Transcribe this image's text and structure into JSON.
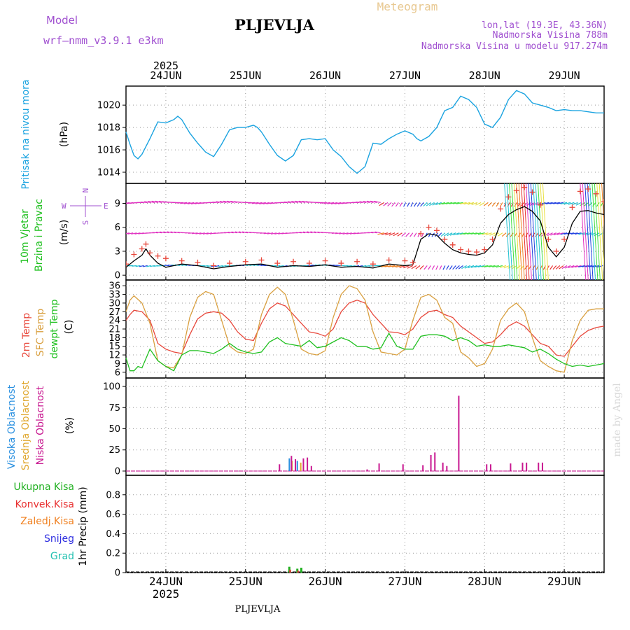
{
  "header": {
    "model_label": "Model",
    "model_name": "wrf–nmm_v3.9.1 e3km",
    "station": "PLJEVLJA",
    "meteogram": "Meteogram",
    "lonlat": "lon,lat (19.3E, 43.36N)",
    "elevation": "Nadmorska Visina 788m",
    "model_elevation": "Nadmorska Visina u modelu 917.274m",
    "year": "2025",
    "footer_station": "PLJEVLJA",
    "watermark": "made by Angel"
  },
  "colors": {
    "pressure": "#1aa3e0",
    "wind_speed": "#000000",
    "wind_gust": "#e8483c",
    "t2m": "#e8483c",
    "sfc": "#d9a040",
    "dew": "#20c020",
    "cloud_high": "#2a90e0",
    "cloud_mid": "#e0a830",
    "cloud_low": "#c81890",
    "precip_total": "#20b020",
    "precip_conv": "#e83030",
    "precip_frz": "#f08020",
    "snow": "#3030e0",
    "grad": "#20c0b0",
    "model_text": "#a050d0",
    "meteogram_text": "#e8c890"
  },
  "chart_data": {
    "type": "line",
    "x_axis": {
      "days": [
        "24JUN",
        "25JUN",
        "26JUN",
        "27JUN",
        "28JUN",
        "29JUN"
      ],
      "year_label": "2025",
      "range_days": [
        -0.5,
        5.5
      ]
    },
    "panels": [
      {
        "id": "pressure",
        "title": "Pritisak na nivou mora",
        "unit": "(hPa)",
        "yticks": [
          1014,
          1016,
          1018,
          1020
        ],
        "ylim": [
          1013,
          1021.7
        ],
        "series": [
          {
            "name": "Pritisak na nivou mora",
            "x": [
              -0.5,
              -0.45,
              -0.4,
              -0.35,
              -0.3,
              -0.2,
              -0.1,
              0.0,
              0.1,
              0.15,
              0.2,
              0.3,
              0.4,
              0.5,
              0.6,
              0.7,
              0.8,
              0.9,
              1.0,
              1.1,
              1.15,
              1.2,
              1.3,
              1.4,
              1.5,
              1.6,
              1.7,
              1.8,
              1.9,
              2.0,
              2.1,
              2.2,
              2.3,
              2.4,
              2.5,
              2.6,
              2.7,
              2.8,
              2.9,
              3.0,
              3.1,
              3.15,
              3.2,
              3.3,
              3.4,
              3.5,
              3.6,
              3.7,
              3.8,
              3.9,
              4.0,
              4.1,
              4.2,
              4.3,
              4.4,
              4.5,
              4.6,
              4.7,
              4.8,
              4.9,
              5.0,
              5.1,
              5.2,
              5.3,
              5.4,
              5.5
            ],
            "y": [
              1017.6,
              1016.5,
              1015.5,
              1015.2,
              1015.6,
              1017.0,
              1018.5,
              1018.4,
              1018.7,
              1019.0,
              1018.7,
              1017.5,
              1016.6,
              1015.8,
              1015.4,
              1016.5,
              1017.8,
              1018.0,
              1018.0,
              1018.2,
              1018.0,
              1017.6,
              1016.5,
              1015.5,
              1015.0,
              1015.5,
              1016.9,
              1017.0,
              1016.9,
              1017.0,
              1016.0,
              1015.4,
              1014.5,
              1013.9,
              1014.5,
              1016.6,
              1016.5,
              1017.0,
              1017.4,
              1017.7,
              1017.4,
              1017.0,
              1016.8,
              1017.2,
              1018.0,
              1019.5,
              1019.8,
              1020.8,
              1020.5,
              1019.8,
              1018.3,
              1018.0,
              1018.9,
              1020.5,
              1021.3,
              1021.0,
              1020.2,
              1020.0,
              1019.8,
              1019.5,
              1019.6,
              1019.5,
              1019.5,
              1019.4,
              1019.3,
              1019.3
            ],
            "color": "#1aa3e0"
          }
        ]
      },
      {
        "id": "wind",
        "title_1": "10m Vjetar",
        "title_2": "Brzina i Pravac",
        "unit": "(m/s)",
        "compass": {
          "n": "N",
          "s": "S",
          "e": "E",
          "w": "W"
        },
        "yticks": [
          0,
          3,
          6,
          9
        ],
        "ylim": [
          -0.6,
          11.5
        ],
        "series": [
          {
            "name": "Brzina",
            "style": "line",
            "x": [
              -0.5,
              -0.4,
              -0.3,
              -0.25,
              -0.2,
              -0.1,
              0.0,
              0.2,
              0.4,
              0.6,
              0.8,
              1.0,
              1.2,
              1.4,
              1.6,
              1.8,
              2.0,
              2.2,
              2.4,
              2.6,
              2.8,
              3.0,
              3.1,
              3.2,
              3.3,
              3.4,
              3.5,
              3.6,
              3.7,
              3.8,
              3.9,
              4.0,
              4.1,
              4.2,
              4.3,
              4.4,
              4.5,
              4.6,
              4.7,
              4.8,
              4.9,
              5.0,
              5.1,
              5.2,
              5.3,
              5.4,
              5.5
            ],
            "y": [
              1.0,
              1.8,
              2.5,
              3.3,
              2.5,
              1.5,
              1.0,
              1.4,
              1.2,
              0.8,
              1.1,
              1.3,
              1.4,
              1.0,
              1.2,
              1.1,
              1.3,
              1.0,
              1.1,
              0.9,
              1.4,
              1.2,
              1.3,
              4.5,
              5.2,
              5.0,
              4.0,
              3.2,
              2.8,
              2.6,
              2.5,
              2.8,
              3.8,
              6.5,
              7.6,
              8.2,
              8.6,
              8.0,
              6.8,
              3.5,
              2.3,
              3.5,
              6.5,
              8.0,
              8.1,
              7.8,
              7.6
            ],
            "color": "#000000"
          },
          {
            "name": "Udar",
            "style": "plus",
            "x": [
              -0.5,
              -0.4,
              -0.3,
              -0.25,
              -0.2,
              -0.1,
              0.0,
              0.2,
              0.4,
              0.6,
              0.8,
              1.0,
              1.2,
              1.4,
              1.6,
              1.8,
              2.0,
              2.2,
              2.4,
              2.6,
              2.8,
              3.0,
              3.1,
              3.2,
              3.3,
              3.4,
              3.5,
              3.6,
              3.7,
              3.8,
              3.9,
              4.0,
              4.1,
              4.2,
              4.3,
              4.4,
              4.5,
              4.6,
              4.7,
              4.8,
              4.9,
              5.0,
              5.1,
              5.2,
              5.3,
              5.4,
              5.5
            ],
            "y": [
              1.4,
              2.6,
              3.3,
              3.9,
              2.8,
              2.4,
              2.1,
              1.8,
              1.6,
              1.2,
              1.5,
              1.7,
              1.9,
              1.5,
              1.7,
              1.5,
              1.8,
              1.5,
              1.7,
              1.4,
              1.9,
              1.8,
              1.6,
              5.2,
              6.0,
              5.6,
              4.5,
              3.8,
              3.2,
              3.0,
              2.9,
              3.2,
              4.5,
              8.3,
              9.8,
              10.6,
              11.0,
              10.4,
              8.8,
              4.5,
              3.0,
              4.5,
              8.5,
              10.5,
              10.8,
              10.2,
              9.2
            ],
            "color": "#e8483c"
          },
          {
            "name": "Pravac",
            "style": "barbs",
            "rows": [
              1.2,
              5.3,
              9.1
            ],
            "color_range": [
              "#2040e0",
              "#20c0d0",
              "#40e040",
              "#e8e040",
              "#f08020",
              "#e83030",
              "#e030c0"
            ]
          }
        ]
      },
      {
        "id": "temperature",
        "title_1": "2m Temp",
        "title_2": "SFC Temp",
        "title_3": "dewpt Temp",
        "unit": "(C)",
        "yticks": [
          6,
          9,
          12,
          15,
          18,
          21,
          24,
          27,
          30,
          33,
          36
        ],
        "ylim": [
          4,
          38
        ],
        "series": [
          {
            "name": "2m Temp",
            "x": [
              -0.5,
              -0.45,
              -0.4,
              -0.3,
              -0.2,
              -0.1,
              0.0,
              0.1,
              0.2,
              0.3,
              0.4,
              0.5,
              0.6,
              0.7,
              0.8,
              0.9,
              1.0,
              1.1,
              1.2,
              1.3,
              1.4,
              1.5,
              1.6,
              1.7,
              1.8,
              1.9,
              2.0,
              2.1,
              2.2,
              2.3,
              2.4,
              2.5,
              2.6,
              2.7,
              2.8,
              2.9,
              3.0,
              3.1,
              3.2,
              3.3,
              3.4,
              3.5,
              3.6,
              3.7,
              3.8,
              3.9,
              4.0,
              4.1,
              4.2,
              4.3,
              4.4,
              4.5,
              4.6,
              4.7,
              4.8,
              4.9,
              5.0,
              5.1,
              5.2,
              5.3,
              5.4,
              5.5
            ],
            "y": [
              24,
              26,
              27.5,
              27,
              24,
              16,
              14,
              13,
              12.5,
              19,
              24.5,
              26.5,
              27,
              26.5,
              24,
              20,
              17.5,
              17,
              23,
              28,
              30,
              29,
              26,
              23,
              20,
              19.5,
              18.5,
              21,
              27,
              30,
              31,
              30,
              26,
              23,
              20,
              19.8,
              19,
              21,
              25,
              27,
              27.5,
              26,
              25,
              22,
              20,
              18,
              16,
              16.5,
              19,
              22,
              23.5,
              22,
              19,
              16,
              15,
              12,
              11.5,
              15,
              18.5,
              20.5,
              21.5,
              22
            ],
            "color": "#e8483c"
          },
          {
            "name": "SFC Temp",
            "x": [
              -0.5,
              -0.45,
              -0.4,
              -0.3,
              -0.2,
              -0.1,
              0.0,
              0.1,
              0.2,
              0.3,
              0.4,
              0.5,
              0.6,
              0.7,
              0.8,
              0.9,
              1.0,
              1.1,
              1.2,
              1.3,
              1.4,
              1.5,
              1.6,
              1.7,
              1.8,
              1.9,
              2.0,
              2.1,
              2.2,
              2.3,
              2.4,
              2.5,
              2.6,
              2.7,
              2.8,
              2.9,
              3.0,
              3.1,
              3.2,
              3.3,
              3.4,
              3.5,
              3.6,
              3.7,
              3.8,
              3.9,
              4.0,
              4.1,
              4.2,
              4.3,
              4.4,
              4.5,
              4.6,
              4.7,
              4.8,
              4.9,
              5.0,
              5.1,
              5.2,
              5.3,
              5.4,
              5.5
            ],
            "y": [
              27,
              31,
              32.5,
              30,
              23,
              10,
              8,
              7.5,
              12,
              25,
              32,
              34,
              33,
              24,
              15,
              13,
              12.5,
              14,
              26,
              33,
              35.5,
              33,
              24,
              14,
              12.5,
              12,
              13.5,
              25,
              33,
              36,
              35,
              31,
              20,
              13,
              12.5,
              12,
              14,
              24,
              32,
              33,
              31,
              25,
              23,
              13,
              11,
              8,
              9,
              14,
              24,
              28,
              30,
              27,
              18,
              10,
              8,
              6.5,
              6,
              17,
              24,
              27.5,
              28,
              28
            ],
            "color": "#d9a040"
          },
          {
            "name": "dewpt Temp",
            "x": [
              -0.5,
              -0.45,
              -0.4,
              -0.35,
              -0.3,
              -0.2,
              -0.1,
              0.0,
              0.1,
              0.2,
              0.3,
              0.4,
              0.5,
              0.6,
              0.7,
              0.8,
              0.9,
              1.0,
              1.1,
              1.2,
              1.3,
              1.4,
              1.5,
              1.6,
              1.7,
              1.8,
              1.9,
              2.0,
              2.1,
              2.2,
              2.3,
              2.4,
              2.5,
              2.6,
              2.7,
              2.8,
              2.9,
              3.0,
              3.1,
              3.2,
              3.3,
              3.4,
              3.5,
              3.6,
              3.7,
              3.8,
              3.9,
              4.0,
              4.1,
              4.2,
              4.3,
              4.4,
              4.5,
              4.6,
              4.7,
              4.8,
              4.9,
              5.0,
              5.1,
              5.2,
              5.3,
              5.4,
              5.5
            ],
            "y": [
              11,
              6.5,
              6.5,
              8,
              7.5,
              14,
              10,
              8,
              6.5,
              12,
              13.5,
              13.5,
              13,
              12.5,
              14,
              16,
              14,
              13,
              12.5,
              13,
              16.5,
              18,
              16,
              15.5,
              15,
              17,
              14.5,
              15,
              16.5,
              18,
              17,
              15,
              15,
              14,
              14.5,
              19.5,
              15,
              14,
              14,
              18.5,
              19,
              19,
              18.5,
              17,
              18,
              17,
              15,
              15.5,
              15,
              15,
              15.5,
              15,
              14.5,
              13,
              14,
              12.5,
              10.5,
              9,
              8,
              8.5,
              8,
              8.5,
              9
            ],
            "color": "#20c020"
          }
        ]
      },
      {
        "id": "cloud",
        "title_1": "Visoka Oblacnost",
        "title_2": "Srednja Oblacnost",
        "title_3": "Niska Oblacnost",
        "unit": "(%)",
        "yticks": [
          0,
          25,
          50,
          75,
          100
        ],
        "ylim": [
          -5,
          110
        ],
        "series": [
          {
            "name": "Visoka Oblacnost",
            "style": "bars",
            "x": [
              1.55,
              1.65
            ],
            "y": [
              15,
              12
            ],
            "color": "#2a90e0"
          },
          {
            "name": "Srednja Oblacnost",
            "style": "bars",
            "x": [
              1.57,
              1.68
            ],
            "y": [
              12,
              10
            ],
            "color": "#e0a830"
          },
          {
            "name": "Niska Oblacnost",
            "style": "bars",
            "x": [
              1.4,
              1.55,
              1.6,
              1.7,
              1.75,
              1.8,
              2.5,
              2.65,
              2.95,
              3.2,
              3.3,
              3.35,
              3.45,
              3.5,
              3.65,
              4.0,
              4.05,
              4.3,
              4.45,
              4.5,
              4.65,
              4.7
            ],
            "y": [
              8,
              18,
              14,
              15,
              16,
              6,
              2,
              9,
              8,
              7,
              19,
              22,
              10,
              6,
              89,
              8,
              8,
              9,
              10,
              10,
              10,
              10
            ],
            "color": "#c81890"
          }
        ]
      },
      {
        "id": "precip",
        "title": "1hr Precip (mm)",
        "legend": [
          "Ukupna Kisa",
          "Konvek.Kisa",
          "Zaledj.Kisa",
          "Snijeg",
          "Grad"
        ],
        "yticks": [
          0,
          0.2,
          0.4,
          0.6,
          0.8
        ],
        "ylim": [
          0,
          1.0
        ],
        "series": [
          {
            "name": "Ukupna Kisa",
            "style": "bars",
            "x": [
              1.55,
              1.65,
              1.7
            ],
            "y": [
              0.06,
              0.04,
              0.05
            ],
            "color": "#20b020"
          },
          {
            "name": "Konvek.Kisa",
            "style": "bars",
            "x": [
              1.56,
              1.66
            ],
            "y": [
              0.03,
              0.02
            ],
            "color": "#e83030"
          }
        ]
      }
    ]
  }
}
